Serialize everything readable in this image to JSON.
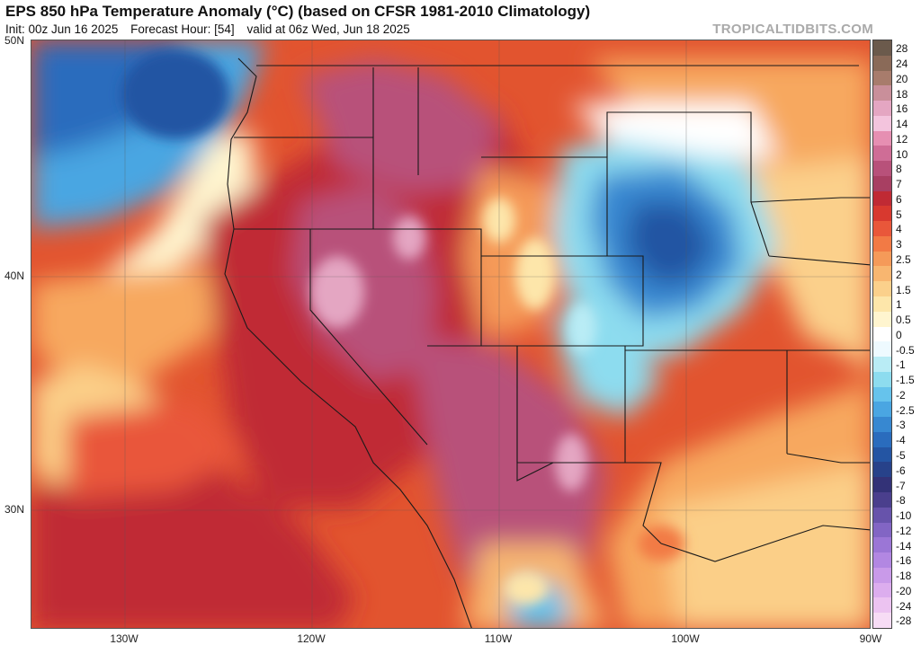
{
  "header": {
    "title": "EPS 850 hPa Temperature Anomaly (°C) (based on CFSR 1981-2010 Climatology)",
    "init": "Init: 00z Jun 16 2025",
    "forecast_hour": "Forecast Hour: [54]",
    "valid": "valid at 06z Wed, Jun 18 2025",
    "brand": "TROPICALTIDBITS.COM"
  },
  "axes": {
    "lat_labels": [
      "50N",
      "40N",
      "30N"
    ],
    "lon_labels": [
      "130W",
      "120W",
      "110W",
      "100W",
      "90W"
    ]
  },
  "colorbar": {
    "labels": [
      "28",
      "24",
      "20",
      "18",
      "16",
      "14",
      "12",
      "10",
      "8",
      "7",
      "6",
      "5",
      "4",
      "3",
      "2.5",
      "2",
      "1.5",
      "1",
      "0.5",
      "0",
      "-0.5",
      "-1",
      "-1.5",
      "-2",
      "-2.5",
      "-3",
      "-4",
      "-5",
      "-6",
      "-7",
      "-8",
      "-10",
      "-12",
      "-14",
      "-16",
      "-18",
      "-20",
      "-24",
      "-28"
    ],
    "colors": [
      "#6b5a4c",
      "#8a6a58",
      "#a87c6c",
      "#c98f9a",
      "#e4a6c2",
      "#f3c4dd",
      "#e68fb2",
      "#cf6d96",
      "#b8517a",
      "#a83f62",
      "#c02a34",
      "#d8392f",
      "#e9573a",
      "#f27a45",
      "#f59a59",
      "#f8b670",
      "#fbd08b",
      "#fde6aa",
      "#fff5cf",
      "#ffffff",
      "#eefaff",
      "#b9ecf5",
      "#8ddcef",
      "#66c3ec",
      "#4aa6e2",
      "#3788d1",
      "#2a6cbd",
      "#2455a3",
      "#27428a",
      "#333277",
      "#4a3f8d",
      "#6753ab",
      "#8265c4",
      "#9b76d6",
      "#b287e2",
      "#c99ae9",
      "#dcadee",
      "#ecc3f1",
      "#f7dcf5"
    ]
  }
}
